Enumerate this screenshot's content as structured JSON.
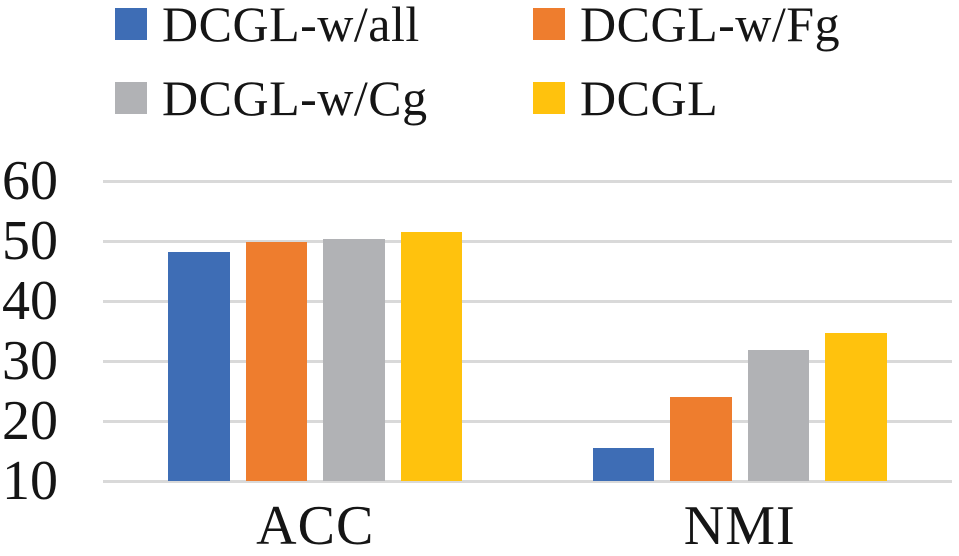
{
  "chart_data": {
    "type": "bar",
    "title": "",
    "xlabel": "",
    "ylabel": "",
    "categories": [
      "ACC",
      "NMI"
    ],
    "series": [
      {
        "name": "DCGL-w/all",
        "color": "#3E6DB5",
        "values": [
          48.1,
          15.5
        ]
      },
      {
        "name": "DCGL-w/Fg",
        "color": "#EE7D2E",
        "values": [
          49.8,
          24.0
        ]
      },
      {
        "name": "DCGL-w/Cg",
        "color": "#B1B2B5",
        "values": [
          50.4,
          31.9
        ]
      },
      {
        "name": "DCGL",
        "color": "#FFC20D",
        "values": [
          51.5,
          34.7
        ]
      }
    ],
    "ylim": [
      10,
      60
    ],
    "yticks": [
      10,
      20,
      30,
      40,
      50,
      60
    ],
    "grid": true,
    "gridline_color": "#D9D9D9",
    "text_color": "#151515",
    "background": "#FFFFFF",
    "legend_position": "top-left-two-rows"
  }
}
